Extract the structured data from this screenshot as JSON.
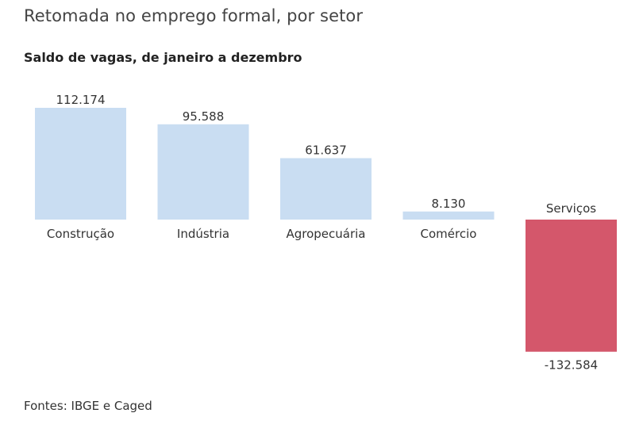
{
  "title": "Retomada no emprego formal, por setor",
  "subtitle": "Saldo de vagas, de janeiro a dezembro",
  "source": "Fontes: IBGE e Caged",
  "colors": {
    "positive": "#c9ddf2",
    "negative": "#d4576b"
  },
  "chart_data": {
    "type": "bar",
    "title": "Saldo de vagas, de janeiro a dezembro",
    "xlabel": "",
    "ylabel": "",
    "categories": [
      "Construção",
      "Indústria",
      "Agropecuária",
      "Comércio",
      "Serviços"
    ],
    "values": [
      112174,
      95588,
      61637,
      8130,
      -132584
    ],
    "value_labels": [
      "112.174",
      "95.588",
      "61.637",
      "8.130",
      "-132.584"
    ],
    "ylim": [
      -132584,
      112174
    ],
    "grid": false,
    "legend": "none"
  }
}
